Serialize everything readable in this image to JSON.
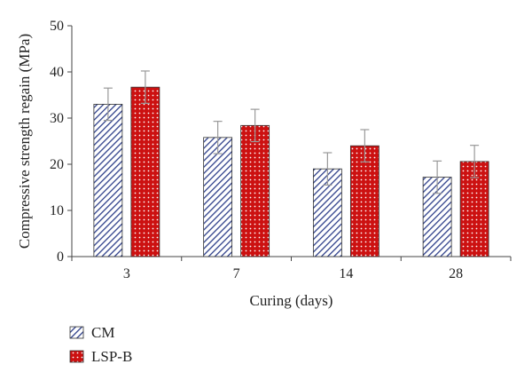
{
  "chart_data": {
    "type": "bar",
    "categories": [
      "3",
      "7",
      "14",
      "28"
    ],
    "xlabel": "Curing (days)",
    "ylabel": "Compressive strength regain (MPa)",
    "ylim": [
      0,
      50
    ],
    "yticks": [
      0,
      10,
      20,
      30,
      40,
      50
    ],
    "grid": false,
    "legend_position": "bottom-left",
    "series": [
      {
        "name": "CM",
        "values": [
          33,
          25.8,
          19,
          17.2
        ],
        "error": [
          3.5,
          3.5,
          3.5,
          3.5
        ],
        "pattern": "diagonal-hatch",
        "color": "#2e3f8a"
      },
      {
        "name": "LSP-B",
        "values": [
          36.7,
          28.4,
          24,
          20.6
        ],
        "error": [
          3.5,
          3.5,
          3.5,
          3.5
        ],
        "pattern": "dotted",
        "color": "#cc1111"
      }
    ]
  }
}
